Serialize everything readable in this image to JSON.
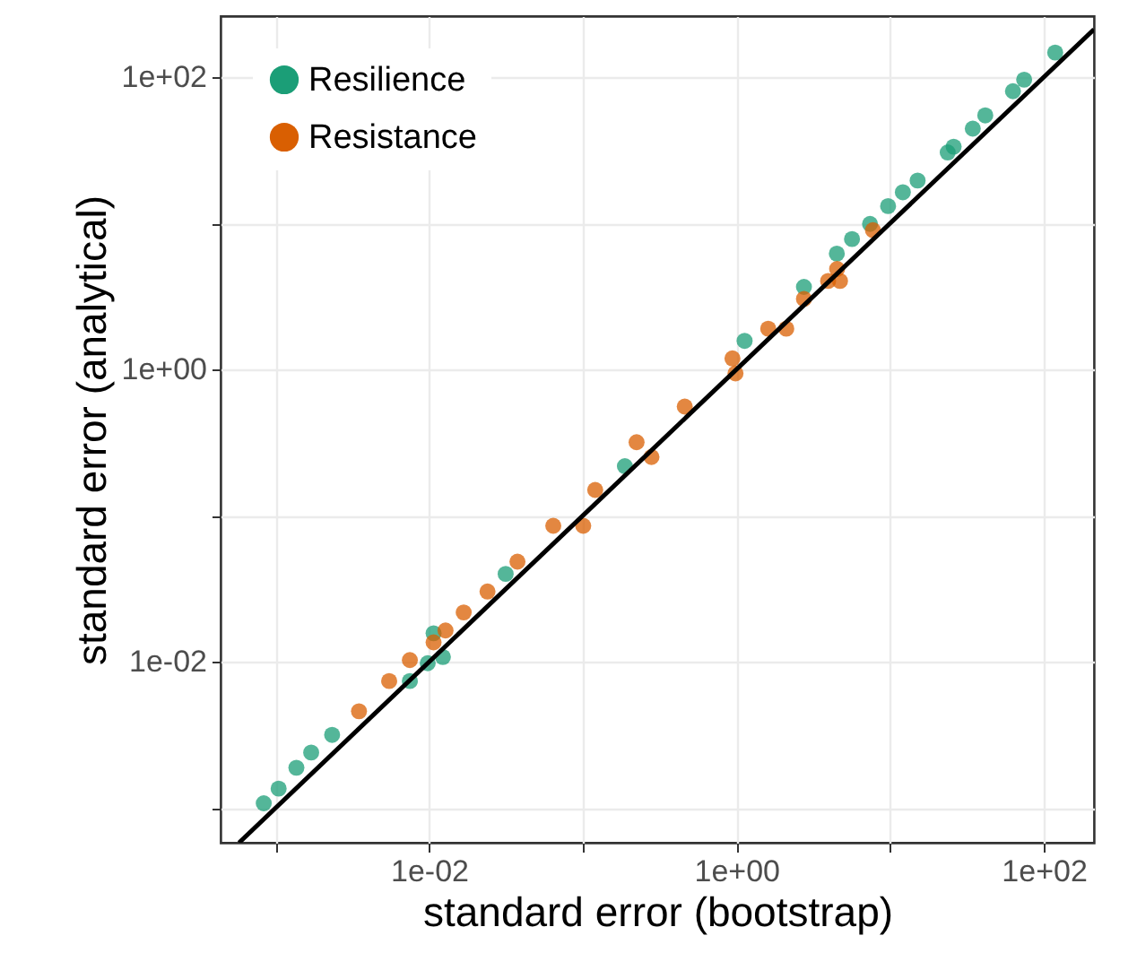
{
  "chart_data": {
    "type": "scatter",
    "xlabel": "standard error (bootstrap)",
    "ylabel": "standard error (analytical)",
    "log": "xy",
    "grid": true,
    "legend": "top left",
    "marker": "circle",
    "xlim": [
      0.00044,
      212
    ],
    "ylim": [
      0.00058,
      261
    ],
    "xticks": [
      {
        "value": 0.001,
        "label": null
      },
      {
        "value": 0.01,
        "label": "1e-02"
      },
      {
        "value": 0.1,
        "label": null
      },
      {
        "value": 1,
        "label": "1e+00"
      },
      {
        "value": 10,
        "label": null
      },
      {
        "value": 100,
        "label": "1e+02"
      }
    ],
    "yticks": [
      {
        "value": 0.001,
        "label": null
      },
      {
        "value": 0.01,
        "label": "1e-02"
      },
      {
        "value": 0.1,
        "label": null
      },
      {
        "value": 1,
        "label": "1e+00"
      },
      {
        "value": 10,
        "label": null
      },
      {
        "value": 100,
        "label": "1e+02"
      }
    ],
    "series": [
      {
        "name": "Resilience",
        "color": "#1b9e77",
        "x": [
          0.00084,
          0.00105,
          0.00137,
          0.00171,
          0.00234,
          0.00336,
          0.00525,
          0.0075,
          0.0098,
          0.0123,
          0.0107,
          0.0315,
          0.188,
          1.13,
          2.75,
          4.5,
          5.65,
          7.4,
          9.7,
          12.1,
          15.1,
          23.7,
          25.9,
          34.5,
          41.6,
          63,
          74.5,
          118.6
        ],
        "values": [
          0.00108,
          0.00136,
          0.00189,
          0.0024,
          0.00317,
          null,
          null,
          0.0074,
          0.0098,
          0.0108,
          0.0157,
          0.04,
          0.218,
          1.57,
          3.67,
          6.2,
          7.8,
          9.9,
          13.1,
          16.3,
          19.6,
          30.5,
          33.4,
          44.4,
          54.7,
          80,
          96,
          147
        ]
      },
      {
        "name": "Resistance",
        "color": "#d95f02",
        "x": [
          0.0035,
          0.0055,
          0.0075,
          0.0107,
          0.0128,
          0.0168,
          0.024,
          0.0376,
          0.0643,
          0.1007,
          0.1205,
          0.224,
          0.28,
          0.461,
          0.942,
          0.986,
          1.61,
          2.11,
          2.75,
          3.95,
          4.72,
          4.52,
          7.73
        ],
        "values": [
          0.0046,
          0.0074,
          0.0103,
          0.0136,
          0.0164,
          0.0218,
          0.0303,
          0.0485,
          0.0853,
          0.0853,
          0.15,
          0.318,
          0.252,
          0.558,
          1.19,
          0.94,
          1.9,
          1.9,
          3.04,
          4.03,
          4.03,
          4.87,
          8.97
        ]
      },
      {
        "type": "line",
        "color": "#000000",
        "line_style": "solid",
        "marker": "none",
        "x": [
          0.00058,
          212
        ],
        "values": [
          0.00058,
          212
        ]
      }
    ]
  }
}
